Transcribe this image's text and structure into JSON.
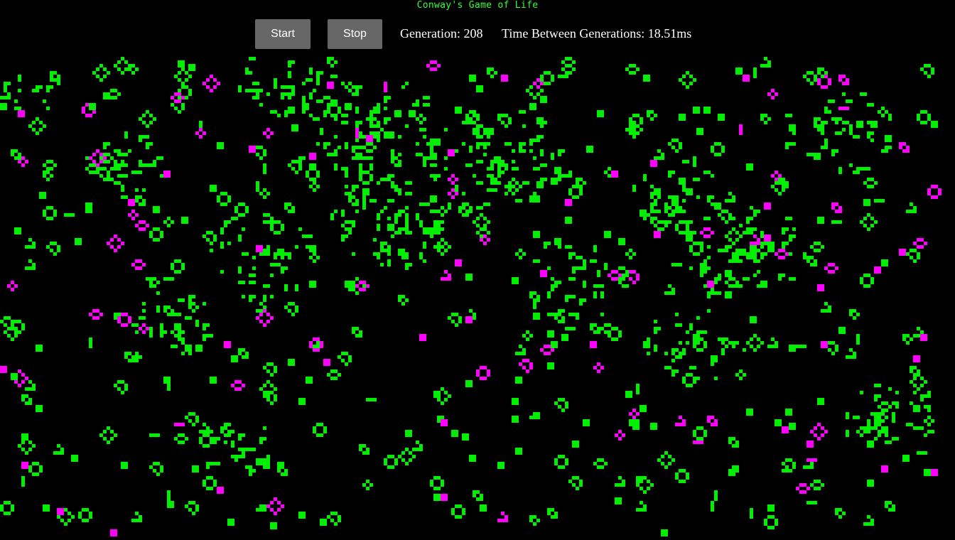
{
  "header": {
    "title": "Conway's Game of Life"
  },
  "controls": {
    "start_label": "Start",
    "stop_label": "Stop",
    "generation_label": "Generation:",
    "generation": "208",
    "time_label": "Time Between Generations:",
    "time": "18.51ms"
  },
  "colors": {
    "background": "#000000",
    "title": "#33ff33",
    "button": "#666666",
    "live_cell": "#00ee00",
    "newborn_cell": "#ff00ff",
    "text": "#ffffff"
  },
  "board": {
    "live_cell_shades": [
      "green",
      "magenta"
    ],
    "grid": "off"
  }
}
